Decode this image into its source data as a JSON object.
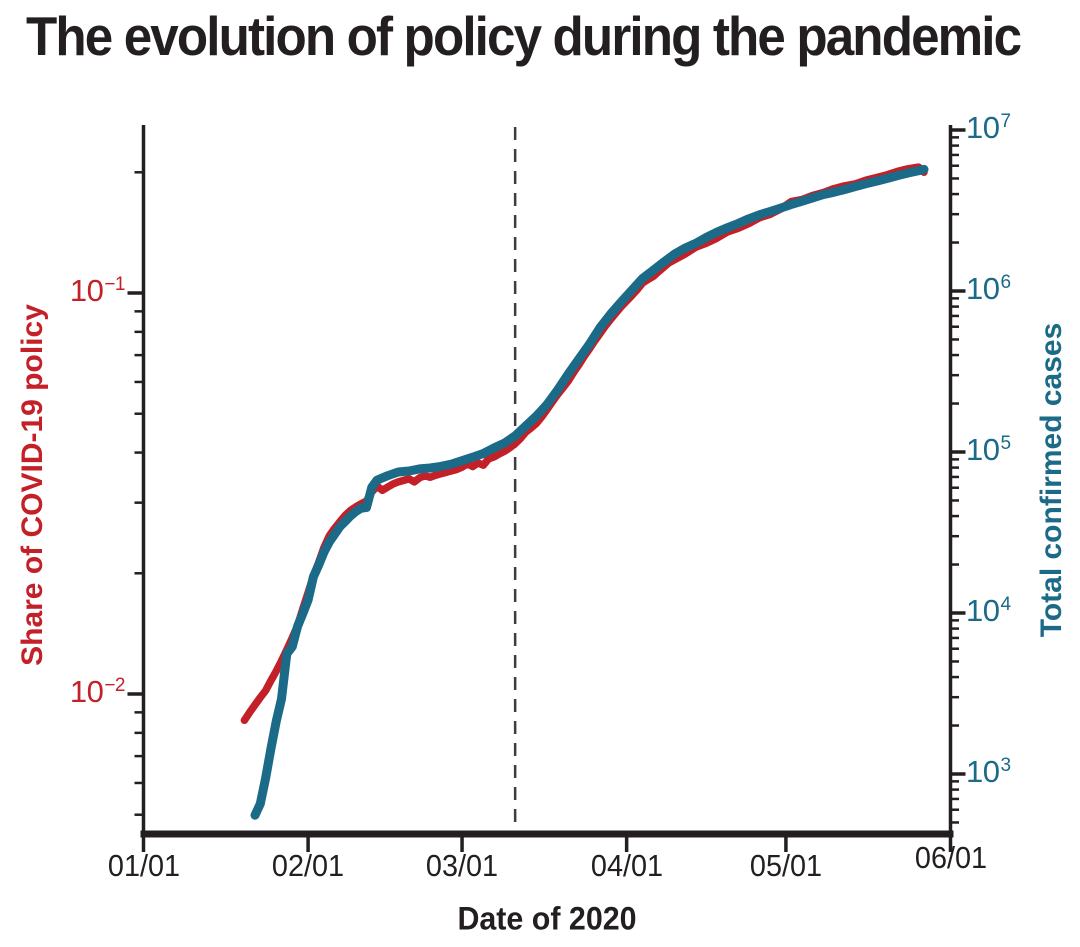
{
  "title": "The evolution of policy during the pandemic",
  "colors": {
    "policy_red": "#C32027",
    "cases_teal": "#1B6A88",
    "axis_black": "#231F20",
    "dashed_gray": "#3D3D3D",
    "background": "#FFFFFF"
  },
  "chart_data": {
    "type": "line",
    "title": "The evolution of policy during the pandemic",
    "xlabel": "Date of 2020",
    "x_tick_labels": [
      "01/01",
      "02/01",
      "03/01",
      "04/01",
      "05/01",
      "06/01"
    ],
    "grid": false,
    "legend": "none",
    "annotation_line": {
      "date": "03/11",
      "style": "dashed",
      "orientation": "vertical"
    },
    "left_axis": {
      "label": "Share of COVID-19 policy",
      "scale": "log",
      "color": "#C32027",
      "tick_exponents": [
        -1,
        -2
      ],
      "range_approx": [
        0.004,
        0.27
      ]
    },
    "right_axis": {
      "label": "Total confirmed cases",
      "scale": "log",
      "color": "#1B6A88",
      "tick_exponents": [
        7,
        6,
        5,
        4,
        3
      ],
      "range_approx": [
        400,
        11000000
      ]
    },
    "series": [
      {
        "name": "Share of COVID-19 policy",
        "axis": "left",
        "color": "#C32027",
        "points": [
          [
            "01/20",
            0.0086
          ],
          [
            "01/21",
            0.009
          ],
          [
            "01/22",
            0.0094
          ],
          [
            "01/23",
            0.0098
          ],
          [
            "01/24",
            0.0102
          ],
          [
            "01/25",
            0.0108
          ],
          [
            "01/26",
            0.0114
          ],
          [
            "01/27",
            0.0121
          ],
          [
            "01/28",
            0.0129
          ],
          [
            "01/29",
            0.0138
          ],
          [
            "01/30",
            0.0148
          ],
          [
            "01/31",
            0.0163
          ],
          [
            "02/01",
            0.0179
          ],
          [
            "02/02",
            0.0197
          ],
          [
            "02/03",
            0.0213
          ],
          [
            "02/04",
            0.0232
          ],
          [
            "02/05",
            0.0248
          ],
          [
            "02/06",
            0.0259
          ],
          [
            "02/07",
            0.0269
          ],
          [
            "02/08",
            0.0279
          ],
          [
            "02/09",
            0.0287
          ],
          [
            "02/10",
            0.0293
          ],
          [
            "02/11",
            0.0298
          ],
          [
            "02/12",
            0.0303
          ],
          [
            "02/13",
            0.0319
          ],
          [
            "02/14",
            0.033
          ],
          [
            "02/15",
            0.0322
          ],
          [
            "02/16",
            0.0328
          ],
          [
            "02/17",
            0.0334
          ],
          [
            "02/18",
            0.0338
          ],
          [
            "02/19",
            0.0341
          ],
          [
            "02/20",
            0.0344
          ],
          [
            "02/21",
            0.0338
          ],
          [
            "02/22",
            0.0346
          ],
          [
            "02/23",
            0.035
          ],
          [
            "02/24",
            0.0347
          ],
          [
            "02/25",
            0.0351
          ],
          [
            "02/26",
            0.0354
          ],
          [
            "02/27",
            0.0357
          ],
          [
            "02/28",
            0.036
          ],
          [
            "02/29",
            0.0363
          ],
          [
            "03/01",
            0.0368
          ],
          [
            "03/02",
            0.0375
          ],
          [
            "03/03",
            0.0369
          ],
          [
            "03/04",
            0.0377
          ],
          [
            "03/05",
            0.0372
          ],
          [
            "03/06",
            0.0386
          ],
          [
            "03/07",
            0.039
          ],
          [
            "03/08",
            0.0397
          ],
          [
            "03/09",
            0.0403
          ],
          [
            "03/10",
            0.0411
          ],
          [
            "03/11",
            0.0421
          ],
          [
            "03/12",
            0.0434
          ],
          [
            "03/13",
            0.045
          ],
          [
            "03/14",
            0.0461
          ],
          [
            "03/15",
            0.0473
          ],
          [
            "03/16",
            0.0491
          ],
          [
            "03/17",
            0.0512
          ],
          [
            "03/18",
            0.0535
          ],
          [
            "03/19",
            0.0558
          ],
          [
            "03/20",
            0.058
          ],
          [
            "03/21",
            0.0603
          ],
          [
            "03/22",
            0.0633
          ],
          [
            "03/23",
            0.0662
          ],
          [
            "03/24",
            0.0695
          ],
          [
            "03/25",
            0.0726
          ],
          [
            "03/26",
            0.076
          ],
          [
            "03/27",
            0.0793
          ],
          [
            "03/28",
            0.0828
          ],
          [
            "03/29",
            0.086
          ],
          [
            "03/30",
            0.0892
          ],
          [
            "03/31",
            0.0925
          ],
          [
            "04/01",
            0.0955
          ],
          [
            "04/02",
            0.0986
          ],
          [
            "04/03",
            0.102
          ],
          [
            "04/04",
            0.106
          ],
          [
            "04/05",
            0.108
          ],
          [
            "04/06",
            0.11
          ],
          [
            "04/07",
            0.113
          ],
          [
            "04/08",
            0.116
          ],
          [
            "04/09",
            0.119
          ],
          [
            "04/10",
            0.121
          ],
          [
            "04/12",
            0.125
          ],
          [
            "04/14",
            0.13
          ],
          [
            "04/16",
            0.133
          ],
          [
            "04/18",
            0.137
          ],
          [
            "04/20",
            0.142
          ],
          [
            "04/22",
            0.145
          ],
          [
            "04/24",
            0.149
          ],
          [
            "04/26",
            0.154
          ],
          [
            "04/28",
            0.157
          ],
          [
            "04/30",
            0.162
          ],
          [
            "05/02",
            0.169
          ],
          [
            "05/04",
            0.171
          ],
          [
            "05/06",
            0.175
          ],
          [
            "05/08",
            0.178
          ],
          [
            "05/10",
            0.182
          ],
          [
            "05/12",
            0.185
          ],
          [
            "05/14",
            0.187
          ],
          [
            "05/16",
            0.191
          ],
          [
            "05/18",
            0.194
          ],
          [
            "05/20",
            0.197
          ],
          [
            "05/22",
            0.201
          ],
          [
            "05/24",
            0.204
          ],
          [
            "05/26",
            0.206
          ],
          [
            "05/27",
            0.2
          ]
        ]
      },
      {
        "name": "Total confirmed cases",
        "axis": "right",
        "color": "#1B6A88",
        "points": [
          [
            "01/22",
            555
          ],
          [
            "01/23",
            654
          ],
          [
            "01/24",
            941
          ],
          [
            "01/25",
            1434
          ],
          [
            "01/26",
            2118
          ],
          [
            "01/27",
            2927
          ],
          [
            "01/28",
            5578
          ],
          [
            "01/29",
            6166
          ],
          [
            "01/30",
            8234
          ],
          [
            "01/31",
            9927
          ],
          [
            "02/01",
            12038
          ],
          [
            "02/02",
            16787
          ],
          [
            "02/03",
            19881
          ],
          [
            "02/04",
            23892
          ],
          [
            "02/05",
            27635
          ],
          [
            "02/06",
            30817
          ],
          [
            "02/07",
            34391
          ],
          [
            "02/08",
            37120
          ],
          [
            "02/09",
            40150
          ],
          [
            "02/10",
            42762
          ],
          [
            "02/11",
            44802
          ],
          [
            "02/12",
            45221
          ],
          [
            "02/13",
            60368
          ],
          [
            "02/14",
            66885
          ],
          [
            "02/15",
            69030
          ],
          [
            "02/16",
            71224
          ],
          [
            "02/17",
            73258
          ],
          [
            "02/18",
            75136
          ],
          [
            "02/20",
            76197
          ],
          [
            "02/22",
            78572
          ],
          [
            "02/24",
            79561
          ],
          [
            "02/26",
            81388
          ],
          [
            "02/28",
            84112
          ],
          [
            "03/01",
            88369
          ],
          [
            "03/03",
            92840
          ],
          [
            "03/05",
            97882
          ],
          [
            "03/07",
            105821
          ],
          [
            "03/09",
            113561
          ],
          [
            "03/11",
            125865
          ],
          [
            "03/13",
            145193
          ],
          [
            "03/15",
            167446
          ],
          [
            "03/17",
            197142
          ],
          [
            "03/19",
            242708
          ],
          [
            "03/21",
            304524
          ],
          [
            "03/23",
            378231
          ],
          [
            "03/25",
            467653
          ],
          [
            "03/27",
            593291
          ],
          [
            "03/29",
            720139
          ],
          [
            "03/31",
            857487
          ],
          [
            "04/02",
            1013157
          ],
          [
            "04/04",
            1197405
          ],
          [
            "04/06",
            1345101
          ],
          [
            "04/08",
            1511104
          ],
          [
            "04/10",
            1691719
          ],
          [
            "04/12",
            1846680
          ],
          [
            "04/14",
            1976191
          ],
          [
            "04/16",
            2152437
          ],
          [
            "04/18",
            2317758
          ],
          [
            "04/20",
            2472259
          ],
          [
            "04/22",
            2624750
          ],
          [
            "04/24",
            2810325
          ],
          [
            "04/26",
            2971669
          ],
          [
            "04/28",
            3116398
          ],
          [
            "04/30",
            3272202
          ],
          [
            "05/02",
            3445595
          ],
          [
            "05/04",
            3607760
          ],
          [
            "05/06",
            3781967
          ],
          [
            "05/08",
            3967999
          ],
          [
            "05/10",
            4101699
          ],
          [
            "05/12",
            4261747
          ],
          [
            "05/14",
            4442163
          ],
          [
            "05/16",
            4634068
          ],
          [
            "05/18",
            4801943
          ],
          [
            "05/20",
            4996472
          ],
          [
            "05/22",
            5211034
          ],
          [
            "05/24",
            5407613
          ],
          [
            "05/26",
            5589626
          ],
          [
            "05/27",
            5691790
          ]
        ]
      }
    ]
  }
}
